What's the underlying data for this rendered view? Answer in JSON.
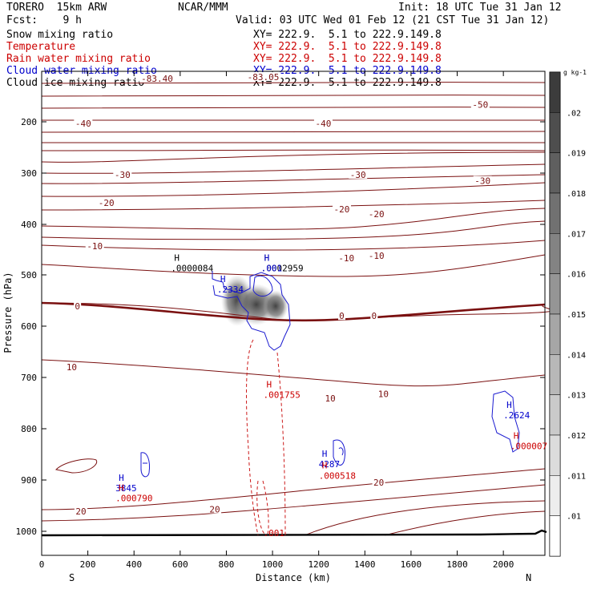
{
  "header": {
    "model": "TORERO  15km ARW",
    "org": "NCAR/MMM",
    "init": "Init: 18 UTC Tue 31 Jan 12",
    "fcst": "Fcst:    9 h",
    "valid": "Valid: 03 UTC Wed 01 Feb 12 (21 CST Tue 31 Jan 12)"
  },
  "legend_rows": [
    {
      "name": "Snow mixing ratio",
      "xy": "XY= 222.9.  5.1 to 222.9.149.8",
      "color": "#000000"
    },
    {
      "name": "Temperature",
      "xy": "XY= 222.9.  5.1 to 222.9.149.8",
      "color": "#cc0000"
    },
    {
      "name": "Rain water mixing ratio",
      "xy": "XY= 222.9.  5.1 to 222.9.149.8",
      "color": "#cc0000"
    },
    {
      "name": "Cloud water mixing ratio",
      "xy": "XY= 222.9.  5.1 to 222.9.149.8",
      "color": "#0000cc"
    },
    {
      "name": "Cloud ice mixing ratio",
      "xy": "XY= 222.9.  5.1 to 222.9.149.8",
      "color": "#000000"
    }
  ],
  "chart_data": {
    "type": "contour",
    "xlabel": "Distance (km)",
    "ylabel": "Pressure (hPa)",
    "x_ticks": [
      0,
      200,
      400,
      600,
      800,
      1000,
      1200,
      1400,
      1600,
      1800,
      2000
    ],
    "y_ticks": [
      200,
      300,
      400,
      500,
      600,
      700,
      800,
      900,
      1000
    ],
    "xlim": [
      0,
      2180
    ],
    "ylim": [
      1050,
      100
    ],
    "end_labels": {
      "left": "S",
      "right": "N"
    },
    "colorbar": {
      "unit": "g kg-1",
      "ticks": [
        ".02",
        ".019",
        ".018",
        ".017",
        ".016",
        ".015",
        ".014",
        ".013",
        ".012",
        ".011",
        ".01"
      ]
    },
    "temperature_labels": [
      {
        "text": "-83.40",
        "x": 500,
        "p": 115
      },
      {
        "text": "-83.05",
        "x": 960,
        "p": 112
      },
      {
        "text": "-50",
        "x": 1900,
        "p": 166
      },
      {
        "text": "-40",
        "x": 180,
        "p": 203
      },
      {
        "text": "-40",
        "x": 1220,
        "p": 203
      },
      {
        "text": "-30",
        "x": 350,
        "p": 303
      },
      {
        "text": "-30",
        "x": 1370,
        "p": 303
      },
      {
        "text": "-30",
        "x": 1910,
        "p": 315
      },
      {
        "text": "-20",
        "x": 280,
        "p": 358
      },
      {
        "text": "-20",
        "x": 1300,
        "p": 370
      },
      {
        "text": "-20",
        "x": 1450,
        "p": 380
      },
      {
        "text": "-10",
        "x": 230,
        "p": 443
      },
      {
        "text": "-10",
        "x": 1320,
        "p": 467
      },
      {
        "text": "-10",
        "x": 1450,
        "p": 462
      },
      {
        "text": "0",
        "x": 155,
        "p": 561
      },
      {
        "text": "0",
        "x": 1300,
        "p": 580
      },
      {
        "text": "0",
        "x": 1440,
        "p": 580
      },
      {
        "text": "10",
        "x": 130,
        "p": 680
      },
      {
        "text": "10",
        "x": 1250,
        "p": 741
      },
      {
        "text": "10",
        "x": 1480,
        "p": 732
      },
      {
        "text": "20",
        "x": 170,
        "p": 961
      },
      {
        "text": "20",
        "x": 750,
        "p": 957
      },
      {
        "text": "20",
        "x": 1460,
        "p": 905
      }
    ],
    "extrema_labels": [
      {
        "mark": "H",
        "value": ".0000084",
        "x": 560,
        "p": 488,
        "color": "#000000"
      },
      {
        "mark": "H",
        "value": ".0002959",
        "x": 950,
        "p": 488,
        "color": "#000000"
      },
      {
        "mark": "H",
        "value": ".001",
        "x": 950,
        "p": 488,
        "color": "#0000cc"
      },
      {
        "mark": "H",
        "value": ".2334",
        "x": 760,
        "p": 530,
        "color": "#0000cc"
      },
      {
        "mark": "H",
        "value": ".001755",
        "x": 960,
        "p": 735,
        "color": "#cc0000"
      },
      {
        "mark": "H",
        "value": ".2624",
        "x": 2000,
        "p": 775,
        "color": "#0000cc"
      },
      {
        "mark": "H",
        "value": ".000007",
        "x": 2030,
        "p": 835,
        "color": "#cc0000"
      },
      {
        "mark": "H",
        "value": "4287",
        "x": 1200,
        "p": 870,
        "color": "#0000cc"
      },
      {
        "mark": "H",
        "value": ".000518",
        "x": 1200,
        "p": 893,
        "color": "#cc0000"
      },
      {
        "mark": "H",
        "value": "3845",
        "x": 320,
        "p": 917,
        "color": "#0000cc"
      },
      {
        "mark": "H",
        "value": ".000790",
        "x": 320,
        "p": 937,
        "color": "#cc0000"
      },
      {
        "mark": "",
        "value": ".001",
        "x": 960,
        "p": 1005,
        "color": "#cc0000"
      }
    ]
  }
}
